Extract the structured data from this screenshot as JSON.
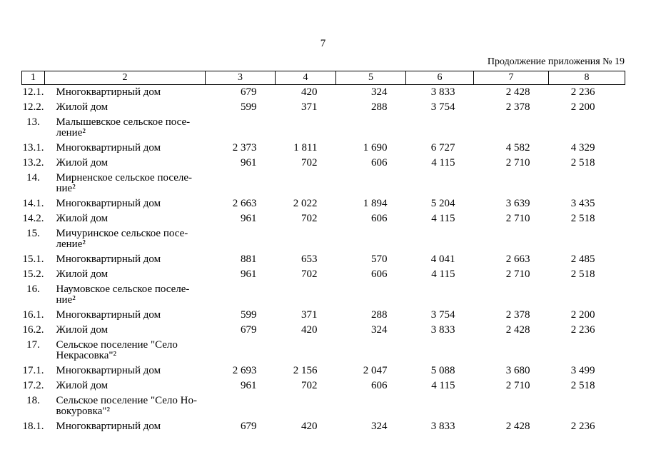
{
  "page": {
    "number": "7",
    "continuation": "Продолжение приложения № 19"
  },
  "table": {
    "header": [
      "1",
      "2",
      "3",
      "4",
      "5",
      "6",
      "7",
      "8"
    ],
    "rows": [
      {
        "num": "12.1.",
        "name": "Многоквартирный дом",
        "values": [
          "679",
          "420",
          "324",
          "3 833",
          "2 428",
          "2 236"
        ]
      },
      {
        "num": "12.2.",
        "name": "Жилой дом",
        "values": [
          "599",
          "371",
          "288",
          "3 754",
          "2 378",
          "2 200"
        ]
      },
      {
        "num": "13.",
        "name": "Малышевское сельское посе-\nление²",
        "values": []
      },
      {
        "num": "13.1.",
        "name": "Многоквартирный дом",
        "values": [
          "2 373",
          "1 811",
          "1 690",
          "6 727",
          "4 582",
          "4 329"
        ]
      },
      {
        "num": "13.2.",
        "name": "Жилой дом",
        "values": [
          "961",
          "702",
          "606",
          "4 115",
          "2 710",
          "2 518"
        ]
      },
      {
        "num": "14.",
        "name": "Мирненское сельское поселе-\nние²",
        "values": []
      },
      {
        "num": "14.1.",
        "name": "Многоквартирный дом",
        "values": [
          "2 663",
          "2 022",
          "1 894",
          "5 204",
          "3 639",
          "3 435"
        ]
      },
      {
        "num": "14.2.",
        "name": "Жилой дом",
        "values": [
          "961",
          "702",
          "606",
          "4 115",
          "2 710",
          "2 518"
        ]
      },
      {
        "num": "15.",
        "name": "Мичуринское сельское посе-\nление²",
        "values": []
      },
      {
        "num": "15.1.",
        "name": "Многоквартирный дом",
        "values": [
          "881",
          "653",
          "570",
          "4 041",
          "2 663",
          "2 485"
        ]
      },
      {
        "num": "15.2.",
        "name": "Жилой дом",
        "values": [
          "961",
          "702",
          "606",
          "4 115",
          "2 710",
          "2 518"
        ]
      },
      {
        "num": "16.",
        "name": "Наумовское сельское поселе-\nние²",
        "values": []
      },
      {
        "num": "16.1.",
        "name": "Многоквартирный дом",
        "values": [
          "599",
          "371",
          "288",
          "3 754",
          "2 378",
          "2 200"
        ]
      },
      {
        "num": "16.2.",
        "name": "Жилой дом",
        "values": [
          "679",
          "420",
          "324",
          "3 833",
          "2 428",
          "2 236"
        ]
      },
      {
        "num": "17.",
        "name": "Сельское поселение \"Село\nНекрасовка\"²",
        "values": []
      },
      {
        "num": "17.1.",
        "name": "Многоквартирный дом",
        "values": [
          "2 693",
          "2 156",
          "2 047",
          "5 088",
          "3 680",
          "3 499"
        ]
      },
      {
        "num": "17.2.",
        "name": "Жилой дом",
        "values": [
          "961",
          "702",
          "606",
          "4 115",
          "2 710",
          "2 518"
        ]
      },
      {
        "num": "18.",
        "name": "Сельское поселение \"Село Но-\nвокуровка\"²",
        "values": []
      },
      {
        "num": "18.1.",
        "name": "Многоквартирный дом",
        "values": [
          "679",
          "420",
          "324",
          "3 833",
          "2 428",
          "2 236"
        ]
      }
    ]
  }
}
